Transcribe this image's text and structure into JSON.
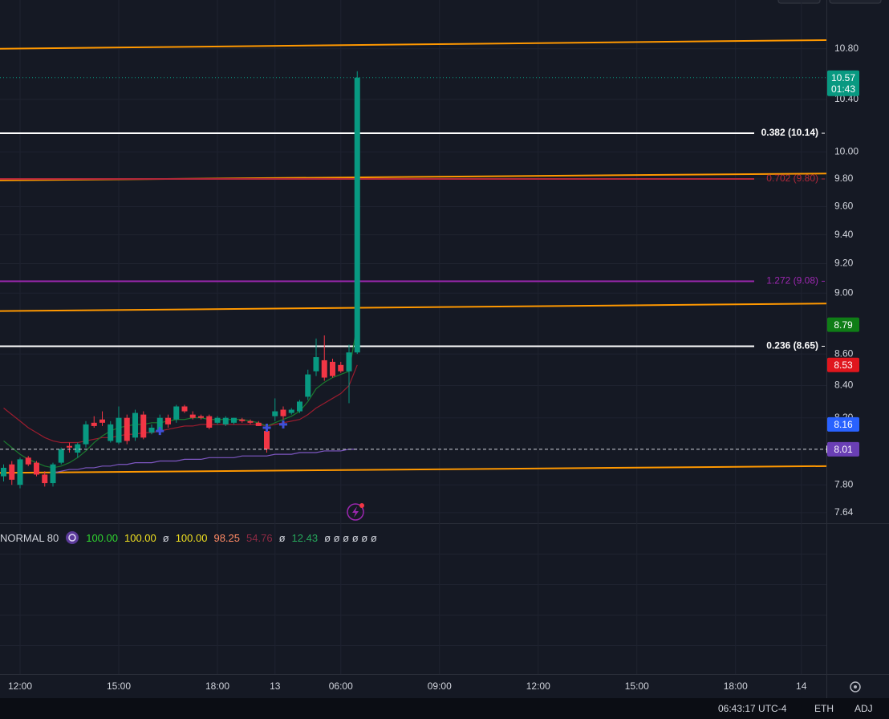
{
  "chart_data": {
    "type": "candlestick",
    "log_scale": true,
    "grid": true,
    "ylim": [
      7.58,
      11.2
    ],
    "yticks": [
      {
        "value": 10.8,
        "label": "10.80"
      },
      {
        "value": 10.4,
        "label": "10.40"
      },
      {
        "value": 10.0,
        "label": "10.00"
      },
      {
        "value": 9.8,
        "label": "9.80"
      },
      {
        "value": 9.6,
        "label": "9.60"
      },
      {
        "value": 9.4,
        "label": "9.40"
      },
      {
        "value": 9.2,
        "label": "9.20"
      },
      {
        "value": 9.0,
        "label": "9.00"
      },
      {
        "value": 8.6,
        "label": "8.60"
      },
      {
        "value": 8.4,
        "label": "8.40"
      },
      {
        "value": 8.2,
        "label": "8.20"
      },
      {
        "value": 7.8,
        "label": "7.80"
      },
      7.64
    ],
    "xlim": [
      -0.44,
      100.05
    ],
    "xticks": [
      {
        "value": 2,
        "label": "12:00"
      },
      {
        "value": 14,
        "label": "15:00"
      },
      {
        "value": 26,
        "label": "18:00"
      },
      {
        "value": 33,
        "label": "13"
      },
      {
        "value": 41,
        "label": "06:00"
      },
      {
        "value": 53,
        "label": "09:00"
      },
      {
        "value": 65,
        "label": "12:00"
      },
      {
        "value": 77,
        "label": "15:00"
      },
      {
        "value": 89,
        "label": "18:00"
      },
      {
        "value": 97,
        "label": "14"
      }
    ],
    "up_color": "#089981",
    "down_color": "#f23645",
    "open": [
      7.85,
      7.92,
      7.8,
      7.96,
      7.93,
      7.86,
      7.81,
      7.93,
      8.03,
      7.99,
      8.04,
      8.17,
      8.19,
      8.06,
      8.05,
      8.2,
      8.08,
      8.22,
      8.11,
      8.12,
      8.2,
      8.19,
      8.27,
      8.22,
      8.21,
      8.21,
      8.17,
      8.16,
      8.17,
      8.19,
      8.18,
      8.17,
      8.12,
      8.21,
      8.25,
      8.23,
      8.24,
      8.33,
      8.49,
      8.56,
      8.55,
      8.53,
      8.49,
      8.61
    ],
    "high": [
      7.92,
      7.94,
      7.96,
      7.97,
      7.94,
      7.88,
      7.93,
      8.02,
      8.05,
      8.05,
      8.18,
      8.21,
      8.24,
      8.18,
      8.27,
      8.22,
      8.25,
      8.24,
      8.16,
      8.22,
      8.22,
      8.28,
      8.28,
      8.24,
      8.22,
      8.22,
      8.21,
      8.21,
      8.2,
      8.2,
      8.19,
      8.18,
      8.14,
      8.32,
      8.27,
      8.26,
      8.31,
      8.5,
      8.7,
      8.72,
      8.57,
      8.55,
      8.66,
      10.62
    ],
    "low": [
      7.82,
      7.8,
      7.78,
      7.91,
      7.85,
      7.79,
      7.79,
      7.92,
      7.99,
      7.96,
      8.02,
      8.14,
      8.15,
      8.05,
      8.04,
      8.04,
      8.06,
      8.07,
      8.1,
      8.1,
      8.14,
      8.17,
      8.23,
      8.19,
      8.19,
      8.13,
      8.16,
      8.15,
      8.16,
      8.17,
      8.16,
      8.15,
      7.99,
      8.18,
      8.19,
      8.22,
      8.23,
      8.31,
      8.46,
      8.43,
      8.45,
      8.48,
      8.29,
      8.6
    ],
    "close": [
      7.9,
      7.83,
      7.95,
      7.92,
      7.86,
      7.81,
      7.92,
      8.01,
      8.02,
      8.04,
      8.16,
      8.15,
      8.17,
      8.16,
      8.2,
      8.06,
      8.23,
      8.08,
      8.14,
      8.2,
      8.16,
      8.27,
      8.24,
      8.2,
      8.2,
      8.14,
      8.2,
      8.2,
      8.2,
      8.18,
      8.17,
      8.15,
      8.01,
      8.24,
      8.21,
      8.25,
      8.3,
      8.47,
      8.58,
      8.45,
      8.46,
      8.49,
      8.61,
      10.57
    ],
    "series": [
      {
        "color": "#9b1c2e",
        "values": [
          8.26,
          8.22,
          8.18,
          8.14,
          8.11,
          8.08,
          8.06,
          8.05,
          8.05,
          8.05,
          8.06,
          8.07,
          8.08,
          8.08,
          8.09,
          8.1,
          8.1,
          8.11,
          8.11,
          8.12,
          8.13,
          8.14,
          8.15,
          8.15,
          8.16,
          8.16,
          8.16,
          8.16,
          8.16,
          8.16,
          8.16,
          8.16,
          8.15,
          8.16,
          8.17,
          8.18,
          8.19,
          8.22,
          8.26,
          8.29,
          8.32,
          8.35,
          8.4,
          8.53
        ]
      },
      {
        "color": "#1b7a2e",
        "values": [
          8.06,
          8.02,
          7.98,
          7.95,
          7.93,
          7.91,
          7.9,
          7.91,
          7.93,
          7.96,
          8.0,
          8.05,
          8.09,
          8.12,
          8.14,
          8.15,
          8.16,
          8.16,
          8.17,
          8.17,
          8.18,
          8.19,
          8.19,
          8.2,
          8.2,
          8.19,
          8.19,
          8.19,
          8.19,
          8.19,
          8.18,
          8.17,
          8.15,
          8.17,
          8.19,
          8.21,
          8.24,
          8.3,
          8.38,
          8.42,
          8.45,
          8.47,
          8.49,
          8.79
        ]
      },
      {
        "color": "#7e57c2",
        "values": [
          null,
          null,
          null,
          null,
          null,
          null,
          7.87,
          7.88,
          7.89,
          7.89,
          7.9,
          7.9,
          7.91,
          7.91,
          7.92,
          7.92,
          7.93,
          7.93,
          7.93,
          7.94,
          7.94,
          7.94,
          7.95,
          7.95,
          7.95,
          7.96,
          7.96,
          7.96,
          7.96,
          7.97,
          7.97,
          7.97,
          7.97,
          7.98,
          7.98,
          7.98,
          7.99,
          7.99,
          7.99,
          8.0,
          8.0,
          8.0,
          8.01,
          8.01
        ]
      }
    ],
    "markers": {
      "color": "#3f51d8",
      "x": [
        19,
        32,
        34
      ],
      "y": [
        8.12,
        8.14,
        8.16
      ]
    },
    "trendlines": {
      "color": "#ff9800",
      "lines": [
        [
          10.8,
          10.87
        ],
        [
          9.79,
          9.84
        ],
        [
          8.88,
          8.93
        ],
        [
          7.87,
          7.91
        ]
      ]
    },
    "fib_levels": [
      {
        "label": "0.382 (10.14)",
        "value": 10.14,
        "color": "#ffffff"
      },
      {
        "label": "0.702 (9.80)",
        "value": 9.8,
        "color": "#b2283a"
      },
      {
        "label": "1.272 (9.08)",
        "value": 9.08,
        "color": "#9c27b0"
      },
      {
        "label": "0.236 (8.65)",
        "value": 8.65,
        "color": "#ffffff"
      }
    ],
    "last_price": {
      "value": 10.57,
      "countdown": "01:43",
      "color": "#089981"
    },
    "price_tags": [
      {
        "value": 8.79,
        "color": "#0f7d16"
      },
      {
        "value": 8.53,
        "color": "#e0161d"
      },
      {
        "value": 8.16,
        "color": "#2962ff"
      },
      {
        "value": 8.01,
        "color": "#6a3fb5"
      }
    ]
  },
  "indicator": {
    "label": "NORMAL 80",
    "values": [
      {
        "text": "100.00",
        "color": "#2fd52f"
      },
      {
        "text": "100.00",
        "color": "#f0e020"
      },
      {
        "text": "ø",
        "color": "#d1d4dc"
      },
      {
        "text": "100.00",
        "color": "#f0e020"
      },
      {
        "text": "98.25",
        "color": "#ff8a65"
      },
      {
        "text": "54.76",
        "color": "#8e2a44"
      },
      {
        "text": "ø",
        "color": "#d1d4dc"
      },
      {
        "text": "12.43",
        "color": "#26a65b"
      },
      {
        "text": "ø ø ø ø ø ø",
        "color": "#d1d4dc"
      }
    ]
  },
  "status": {
    "time": "06:43:17 UTC-4",
    "session": "ETH",
    "adjust": "ADJ"
  }
}
